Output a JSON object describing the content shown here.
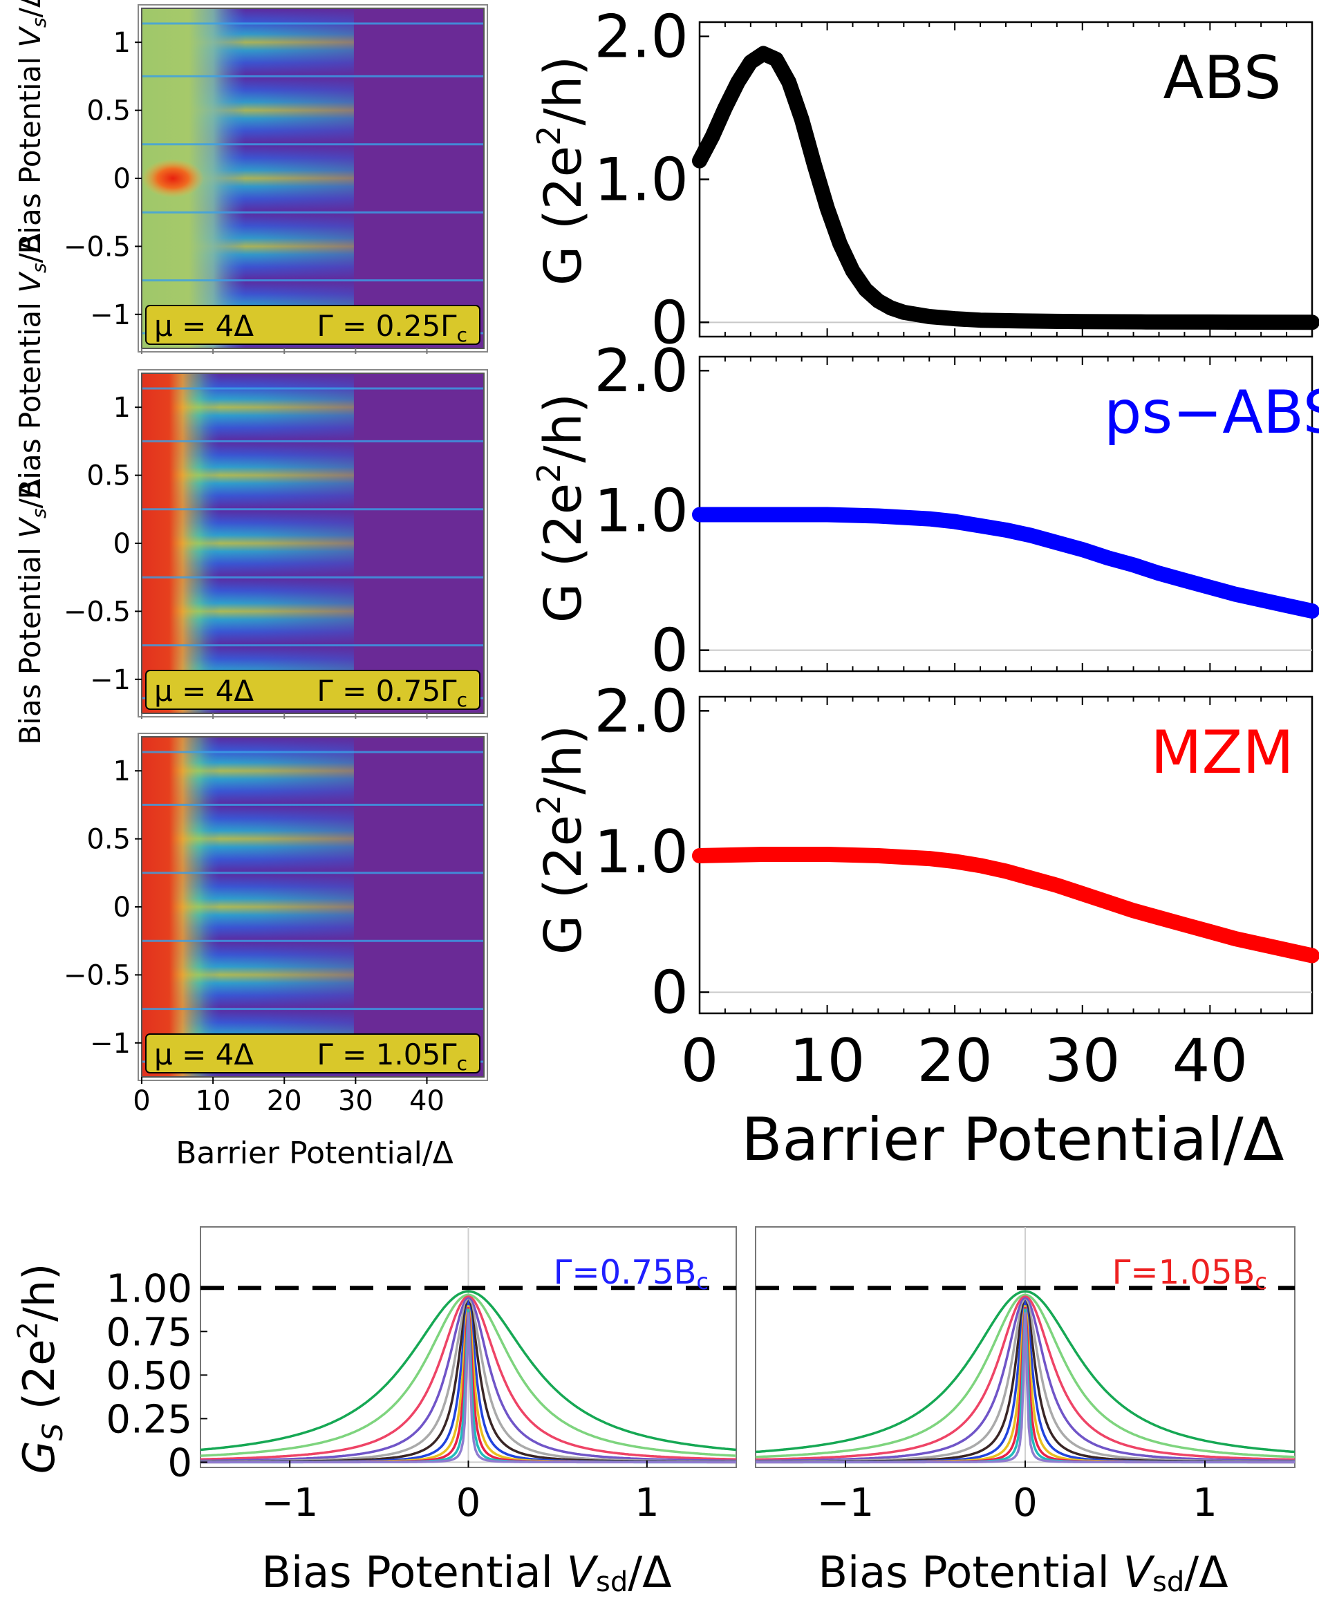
{
  "chart_data": [
    {
      "id": "heatmap-top",
      "type": "heatmap",
      "ylabel_prefix": "Bias Potential ",
      "ylabel_var": "V",
      "ylabel_sub": "s",
      "ylabel_suffix": "/Δ",
      "y_ticks": [
        "1",
        "0.5",
        "0",
        "−0.5",
        "−1"
      ],
      "y_tick_values": [
        1,
        0.5,
        0,
        -0.5,
        -1
      ],
      "ylim": [
        -1.25,
        1.25
      ],
      "xlim": [
        0,
        48
      ],
      "x_ticks": [],
      "annotation_mu": "μ = 4Δ",
      "annotation_gamma": "Γ = 0.25Γ",
      "annotation_gamma_sub": "c",
      "gamma_over_gamma_c": 0.25
    },
    {
      "id": "heatmap-middle",
      "type": "heatmap",
      "ylabel_prefix": "Bias Potential ",
      "ylabel_var": "V",
      "ylabel_sub": "s",
      "ylabel_suffix": "/Δ",
      "y_ticks": [
        "1",
        "0.5",
        "0",
        "−0.5",
        "−1"
      ],
      "y_tick_values": [
        1,
        0.5,
        0,
        -0.5,
        -1
      ],
      "ylim": [
        -1.25,
        1.25
      ],
      "xlim": [
        0,
        48
      ],
      "x_ticks": [],
      "annotation_mu": "μ = 4Δ",
      "annotation_gamma": "Γ = 0.75Γ",
      "annotation_gamma_sub": "c",
      "gamma_over_gamma_c": 0.75
    },
    {
      "id": "heatmap-bottom",
      "type": "heatmap",
      "ylabel_prefix": "Bias Potential ",
      "ylabel_var": "V",
      "ylabel_sub": "s",
      "ylabel_suffix": "/Δ",
      "y_ticks": [
        "1",
        "0.5",
        "0",
        "−0.5",
        "−1"
      ],
      "y_tick_values": [
        1,
        0.5,
        0,
        -0.5,
        -1
      ],
      "ylim": [
        -1.25,
        1.25
      ],
      "xlim": [
        0,
        48
      ],
      "x_ticks": [
        "0",
        "10",
        "20",
        "30",
        "40"
      ],
      "x_tick_values": [
        0,
        10,
        20,
        30,
        40
      ],
      "xlabel": "Barrier Potential/Δ",
      "annotation_mu": "μ = 4Δ",
      "annotation_gamma": "Γ = 1.05Γ",
      "annotation_gamma_sub": "c",
      "gamma_over_gamma_c": 1.05
    },
    {
      "id": "line-abs",
      "type": "line",
      "label": "ABS",
      "color": "#000000",
      "ylabel_main": "G (2e",
      "ylabel_sup": "2",
      "ylabel_end": "/h)",
      "y_ticks": [
        "2.0",
        "1.0",
        "0"
      ],
      "y_tick_values": [
        2,
        1,
        0
      ],
      "ylim": [
        -0.1,
        2.1
      ],
      "xlim": [
        0,
        48
      ],
      "x": [
        0,
        1,
        2,
        3,
        4,
        5,
        6,
        7,
        8,
        9,
        10,
        11,
        12,
        13,
        14,
        15,
        16,
        18,
        20,
        22,
        25,
        30,
        35,
        40,
        44,
        48
      ],
      "y": [
        1.13,
        1.3,
        1.5,
        1.68,
        1.82,
        1.88,
        1.84,
        1.68,
        1.42,
        1.1,
        0.8,
        0.55,
        0.36,
        0.23,
        0.15,
        0.1,
        0.07,
        0.04,
        0.025,
        0.015,
        0.01,
        0.005,
        0.003,
        0.002,
        0.001,
        0.0
      ]
    },
    {
      "id": "line-ps-abs",
      "type": "line",
      "label": "ps−ABS",
      "color": "#0000ff",
      "ylabel_main": "G (2e",
      "ylabel_sup": "2",
      "ylabel_end": "/h)",
      "y_ticks": [
        "2.0",
        "1.0",
        "0"
      ],
      "y_tick_values": [
        2,
        1,
        0
      ],
      "ylim": [
        -0.15,
        2.1
      ],
      "xlim": [
        0,
        48
      ],
      "x": [
        0,
        5,
        10,
        14,
        18,
        20,
        22,
        24,
        26,
        28,
        30,
        32,
        34,
        36,
        38,
        40,
        42,
        44,
        46,
        48
      ],
      "y": [
        0.97,
        0.97,
        0.97,
        0.96,
        0.94,
        0.92,
        0.89,
        0.86,
        0.82,
        0.77,
        0.72,
        0.66,
        0.61,
        0.55,
        0.5,
        0.45,
        0.4,
        0.36,
        0.32,
        0.28
      ]
    },
    {
      "id": "line-mzm",
      "type": "line",
      "label": "MZM",
      "color": "#ff0000",
      "ylabel_main": "G (2e",
      "ylabel_sup": "2",
      "ylabel_end": "/h)",
      "y_ticks": [
        "2.0",
        "1.0",
        "0"
      ],
      "y_tick_values": [
        2,
        1,
        0
      ],
      "ylim": [
        -0.15,
        2.1
      ],
      "xlim": [
        0,
        48
      ],
      "x_ticks": [
        "0",
        "10",
        "20",
        "30",
        "40"
      ],
      "x_tick_values": [
        0,
        10,
        20,
        30,
        40
      ],
      "xlabel": "Barrier Potential/Δ",
      "x": [
        0,
        5,
        10,
        14,
        18,
        20,
        22,
        24,
        26,
        28,
        30,
        32,
        34,
        36,
        38,
        40,
        42,
        44,
        46,
        48
      ],
      "y": [
        0.97,
        0.98,
        0.98,
        0.97,
        0.95,
        0.93,
        0.9,
        0.86,
        0.81,
        0.76,
        0.7,
        0.64,
        0.58,
        0.53,
        0.48,
        0.43,
        0.38,
        0.34,
        0.3,
        0.26
      ]
    },
    {
      "id": "lorentz-left",
      "type": "line",
      "annotation": "Γ=0.75B",
      "annotation_sub": "c",
      "annotation_color": "#1f1fff",
      "ylabel_var": "G",
      "ylabel_sub": "S",
      "ylabel_main": " (2e",
      "ylabel_sup": "2",
      "ylabel_end": "/h)",
      "y_ticks": [
        "1.00",
        "0.75",
        "0.50",
        "0.25",
        "0"
      ],
      "y_tick_values": [
        1.0,
        0.75,
        0.5,
        0.25,
        0
      ],
      "ylim": [
        -0.03,
        1.35
      ],
      "xlim": [
        -1.5,
        1.5
      ],
      "x_ticks": [
        "−1",
        "0",
        "1"
      ],
      "x_tick_values": [
        -1,
        0,
        1
      ],
      "xlabel_prefix": "Bias Potential ",
      "xlabel_var": "V",
      "xlabel_sub": "sd",
      "xlabel_suffix": "/Δ",
      "reference_line": 1.0,
      "series": [
        {
          "name": "w1",
          "peak": 0.98,
          "width": 0.42,
          "color": "#16a854"
        },
        {
          "name": "w2",
          "peak": 0.96,
          "width": 0.3,
          "color": "#7ed47e"
        },
        {
          "name": "w3",
          "peak": 0.95,
          "width": 0.2,
          "color": "#ee4466"
        },
        {
          "name": "w4",
          "peak": 0.94,
          "width": 0.14,
          "color": "#7055c8"
        },
        {
          "name": "w5",
          "peak": 0.93,
          "width": 0.1,
          "color": "#aaaaaa"
        },
        {
          "name": "w6",
          "peak": 0.92,
          "width": 0.072,
          "color": "#3a2626"
        },
        {
          "name": "w7",
          "peak": 0.91,
          "width": 0.05,
          "color": "#2244dd"
        },
        {
          "name": "w8",
          "peak": 0.9,
          "width": 0.036,
          "color": "#e8c020"
        },
        {
          "name": "w9",
          "peak": 0.89,
          "width": 0.026,
          "color": "#e8224a"
        },
        {
          "name": "w10",
          "peak": 0.88,
          "width": 0.018,
          "color": "#22bbbb"
        },
        {
          "name": "w11",
          "peak": 0.86,
          "width": 0.012,
          "color": "#8f7cd0"
        }
      ]
    },
    {
      "id": "lorentz-right",
      "type": "line",
      "annotation": "Γ=1.05B",
      "annotation_sub": "c",
      "annotation_color": "#ee2020",
      "xlim": [
        -1.5,
        1.5
      ],
      "ylim": [
        -0.03,
        1.35
      ],
      "x_ticks": [
        "−1",
        "0",
        "1"
      ],
      "x_tick_values": [
        -1,
        0,
        1
      ],
      "xlabel_prefix": "Bias Potential ",
      "xlabel_var": "V",
      "xlabel_sub": "sd",
      "xlabel_suffix": "/Δ",
      "reference_line": 1.0,
      "series": [
        {
          "name": "w1",
          "peak": 0.98,
          "width": 0.38,
          "color": "#16a854"
        },
        {
          "name": "w2",
          "peak": 0.96,
          "width": 0.27,
          "color": "#7ed47e"
        },
        {
          "name": "w3",
          "peak": 0.95,
          "width": 0.19,
          "color": "#ee4466"
        },
        {
          "name": "w4",
          "peak": 0.94,
          "width": 0.135,
          "color": "#7055c8"
        },
        {
          "name": "w5",
          "peak": 0.93,
          "width": 0.096,
          "color": "#aaaaaa"
        },
        {
          "name": "w6",
          "peak": 0.92,
          "width": 0.068,
          "color": "#3a2626"
        },
        {
          "name": "w7",
          "peak": 0.91,
          "width": 0.048,
          "color": "#2244dd"
        },
        {
          "name": "w8",
          "peak": 0.9,
          "width": 0.034,
          "color": "#e8c020"
        },
        {
          "name": "w9",
          "peak": 0.89,
          "width": 0.024,
          "color": "#e8224a"
        },
        {
          "name": "w10",
          "peak": 0.88,
          "width": 0.017,
          "color": "#22bbbb"
        },
        {
          "name": "w11",
          "peak": 0.86,
          "width": 0.011,
          "color": "#8f7cd0"
        }
      ]
    }
  ]
}
